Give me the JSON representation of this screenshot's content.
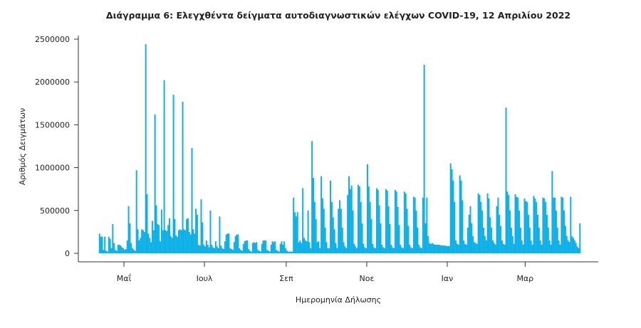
{
  "chart_data": {
    "type": "bar",
    "title": "Διάγραμμα 6: Ελεγχθέντα δείγματα αυτοδιαγνωστικών ελέγχων COVID-19, 12 Απριλίου 2022",
    "xlabel": "Ημερομηνία Δήλωσης",
    "ylabel": "Αριθμός Δειγμάτων",
    "ylim": [
      0,
      2500000
    ],
    "yticks": [
      "0",
      "500000",
      "1000000",
      "1500000",
      "2000000",
      "2500000"
    ],
    "xticks": [
      {
        "label": "Μαΐ",
        "date": "2021-05-01"
      },
      {
        "label": "Ιουλ",
        "date": "2021-07-01"
      },
      {
        "label": "Σεπ",
        "date": "2021-09-01"
      },
      {
        "label": "Νοε",
        "date": "2021-11-01"
      },
      {
        "label": "Ιαν",
        "date": "2022-01-01"
      },
      {
        "label": "Μαρ",
        "date": "2022-03-01"
      }
    ],
    "grid": false,
    "bar_color": "#0eb0e8",
    "weeks": [
      {
        "start": "2021-04-12",
        "daily": [
          230000,
          195000,
          195000,
          40000,
          195000,
          30000,
          20000
        ]
      },
      {
        "start": "2021-04-19",
        "daily": [
          195000,
          170000,
          60000,
          340000,
          120000,
          40000,
          30000
        ]
      },
      {
        "start": "2021-04-26",
        "daily": [
          100000,
          100000,
          90000,
          70000,
          60000,
          40000,
          50000
        ]
      },
      {
        "start": "2021-05-03",
        "daily": [
          150000,
          550000,
          350000,
          120000,
          60000,
          40000,
          30000
        ]
      },
      {
        "start": "2021-05-10",
        "daily": [
          970000,
          280000,
          150000,
          180000,
          280000,
          270000,
          250000
        ]
      },
      {
        "start": "2021-05-17",
        "daily": [
          2440000,
          690000,
          230000,
          180000,
          130000,
          380000,
          270000
        ]
      },
      {
        "start": "2021-05-24",
        "daily": [
          1620000,
          560000,
          340000,
          330000,
          140000,
          510000,
          270000
        ]
      },
      {
        "start": "2021-05-31",
        "daily": [
          2020000,
          270000,
          260000,
          330000,
          410000,
          200000,
          180000
        ]
      },
      {
        "start": "2021-06-07",
        "daily": [
          1850000,
          400000,
          210000,
          190000,
          270000,
          280000,
          270000
        ]
      },
      {
        "start": "2021-06-14",
        "daily": [
          1770000,
          280000,
          270000,
          400000,
          410000,
          250000,
          220000
        ]
      },
      {
        "start": "2021-06-21",
        "daily": [
          1230000,
          280000,
          230000,
          520000,
          450000,
          100000,
          90000
        ]
      },
      {
        "start": "2021-06-28",
        "daily": [
          630000,
          360000,
          100000,
          80000,
          150000,
          100000,
          70000
        ]
      },
      {
        "start": "2021-07-05",
        "daily": [
          500000,
          100000,
          70000,
          60000,
          140000,
          80000,
          60000
        ]
      },
      {
        "start": "2021-07-12",
        "daily": [
          430000,
          90000,
          60000,
          50000,
          140000,
          220000,
          230000
        ]
      },
      {
        "start": "2021-07-19",
        "daily": [
          230000,
          60000,
          50000,
          40000,
          130000,
          200000,
          220000
        ]
      },
      {
        "start": "2021-07-26",
        "daily": [
          220000,
          60000,
          40000,
          30000,
          110000,
          140000,
          150000
        ]
      },
      {
        "start": "2021-08-02",
        "daily": [
          150000,
          50000,
          30000,
          20000,
          120000,
          130000,
          120000
        ]
      },
      {
        "start": "2021-08-09",
        "daily": [
          130000,
          40000,
          30000,
          20000,
          110000,
          150000,
          150000
        ]
      },
      {
        "start": "2021-08-16",
        "daily": [
          150000,
          40000,
          30000,
          20000,
          100000,
          140000,
          130000
        ]
      },
      {
        "start": "2021-08-23",
        "daily": [
          140000,
          40000,
          30000,
          20000,
          110000,
          140000,
          100000
        ]
      },
      {
        "start": "2021-08-30",
        "daily": [
          140000,
          60000,
          30000,
          20000,
          20000,
          20000,
          20000
        ]
      },
      {
        "start": "2021-09-06",
        "daily": [
          650000,
          480000,
          430000,
          480000,
          130000,
          150000,
          120000
        ]
      },
      {
        "start": "2021-09-13",
        "daily": [
          760000,
          180000,
          150000,
          140000,
          500000,
          130000,
          60000
        ]
      },
      {
        "start": "2021-09-20",
        "daily": [
          1310000,
          880000,
          600000,
          400000,
          130000,
          140000,
          60000
        ]
      },
      {
        "start": "2021-09-27",
        "daily": [
          900000,
          640000,
          520000,
          300000,
          130000,
          60000,
          60000
        ]
      },
      {
        "start": "2021-10-04",
        "daily": [
          850000,
          600000,
          420000,
          280000,
          120000,
          60000,
          520000
        ]
      },
      {
        "start": "2021-10-11",
        "daily": [
          620000,
          520000,
          300000,
          130000,
          80000,
          60000,
          680000
        ]
      },
      {
        "start": "2021-10-18",
        "daily": [
          900000,
          750000,
          790000,
          500000,
          110000,
          80000,
          60000
        ]
      },
      {
        "start": "2021-10-25",
        "daily": [
          800000,
          780000,
          600000,
          350000,
          110000,
          70000,
          60000
        ]
      },
      {
        "start": "2021-11-01",
        "daily": [
          1040000,
          780000,
          600000,
          400000,
          110000,
          70000,
          60000
        ]
      },
      {
        "start": "2021-11-08",
        "daily": [
          760000,
          740000,
          560000,
          350000,
          100000,
          70000,
          60000
        ]
      },
      {
        "start": "2021-11-15",
        "daily": [
          750000,
          730000,
          550000,
          340000,
          100000,
          70000,
          60000
        ]
      },
      {
        "start": "2021-11-22",
        "daily": [
          740000,
          720000,
          540000,
          330000,
          100000,
          70000,
          60000
        ]
      },
      {
        "start": "2021-11-29",
        "daily": [
          720000,
          700000,
          520000,
          320000,
          100000,
          70000,
          60000
        ]
      },
      {
        "start": "2021-12-06",
        "daily": [
          660000,
          650000,
          500000,
          300000,
          100000,
          70000,
          60000
        ]
      },
      {
        "start": "2021-12-13",
        "daily": [
          650000,
          2200000,
          350000,
          650000,
          200000,
          120000,
          110000
        ]
      },
      {
        "start": "2021-12-20",
        "daily": [
          120000,
          110000,
          100000,
          100000,
          100000,
          100000,
          95000
        ]
      },
      {
        "start": "2021-12-27",
        "daily": [
          95000,
          90000,
          90000,
          90000,
          85000,
          85000,
          85000
        ]
      },
      {
        "start": "2022-01-03",
        "daily": [
          1050000,
          980000,
          850000,
          600000,
          150000,
          110000,
          100000
        ]
      },
      {
        "start": "2022-01-10",
        "daily": [
          910000,
          850000,
          620000,
          150000,
          110000,
          100000,
          300000
        ]
      },
      {
        "start": "2022-01-17",
        "daily": [
          450000,
          550000,
          350000,
          200000,
          130000,
          120000,
          110000
        ]
      },
      {
        "start": "2022-01-24",
        "daily": [
          700000,
          680000,
          600000,
          500000,
          300000,
          200000,
          150000
        ]
      },
      {
        "start": "2022-01-31",
        "daily": [
          700000,
          640000,
          420000,
          300000,
          150000,
          120000,
          100000
        ]
      },
      {
        "start": "2022-02-07",
        "daily": [
          550000,
          650000,
          450000,
          320000,
          150000,
          110000,
          100000
        ]
      },
      {
        "start": "2022-02-14",
        "daily": [
          1700000,
          720000,
          680000,
          500000,
          300000,
          200000,
          110000
        ]
      },
      {
        "start": "2022-02-21",
        "daily": [
          690000,
          660000,
          650000,
          500000,
          300000,
          150000,
          100000
        ]
      },
      {
        "start": "2022-02-28",
        "daily": [
          640000,
          610000,
          600000,
          450000,
          300000,
          150000,
          100000
        ]
      },
      {
        "start": "2022-03-07",
        "daily": [
          670000,
          640000,
          600000,
          450000,
          300000,
          150000,
          100000
        ]
      },
      {
        "start": "2022-03-14",
        "daily": [
          650000,
          640000,
          600000,
          450000,
          300000,
          150000,
          100000
        ]
      },
      {
        "start": "2022-03-21",
        "daily": [
          960000,
          650000,
          650000,
          500000,
          300000,
          150000,
          100000
        ]
      },
      {
        "start": "2022-03-28",
        "daily": [
          660000,
          650000,
          500000,
          320000,
          200000,
          150000,
          130000
        ]
      },
      {
        "start": "2022-04-04",
        "daily": [
          660000,
          200000,
          180000,
          150000,
          120000,
          80000,
          60000
        ]
      },
      {
        "start": "2022-04-11",
        "daily": [
          350000
        ]
      }
    ]
  }
}
